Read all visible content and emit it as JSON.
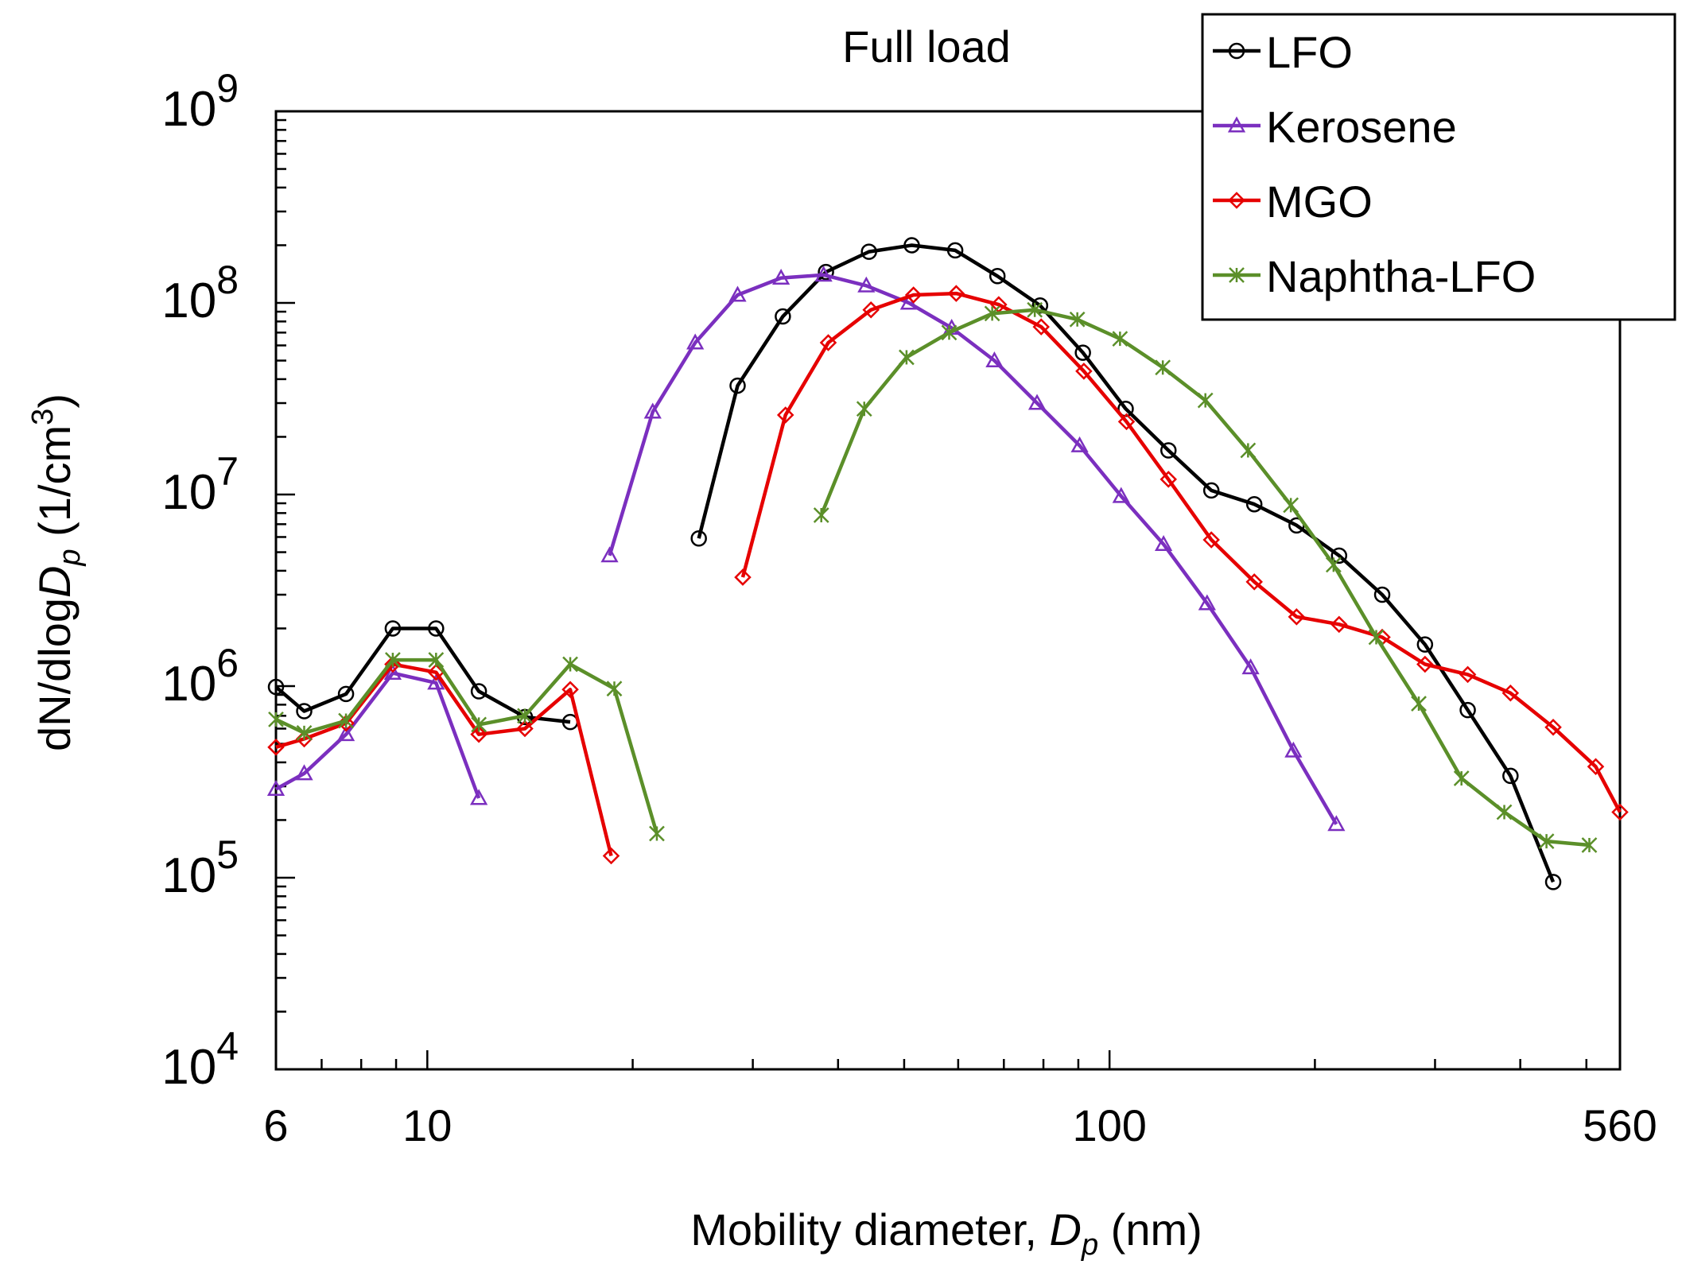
{
  "chart_data": {
    "type": "line",
    "title": "Full load",
    "xlabel": {
      "prefix": "Mobility diameter, ",
      "var": "D",
      "sub": "p",
      "suffix": " (nm)"
    },
    "ylabel": {
      "prefix": "dN/dlog",
      "var": "D",
      "sub": "p",
      "suffix_open": " (1/cm",
      "sup": "3",
      "suffix_close": ")"
    },
    "x_scale": "log",
    "y_scale": "log",
    "xlim": [
      6,
      560
    ],
    "ylim": [
      10000,
      1000000000
    ],
    "x_tick_labels": [
      {
        "value": 6,
        "text": "6"
      },
      {
        "value": 10,
        "text": "10"
      },
      {
        "value": 100,
        "text": "100"
      },
      {
        "value": 560,
        "text": "560"
      }
    ],
    "y_tick_labels": [
      {
        "value": 10000,
        "base": "10",
        "exp": "4"
      },
      {
        "value": 100000,
        "base": "10",
        "exp": "5"
      },
      {
        "value": 1000000,
        "base": "10",
        "exp": "6"
      },
      {
        "value": 10000000,
        "base": "10",
        "exp": "7"
      },
      {
        "value": 100000000,
        "base": "10",
        "exp": "8"
      },
      {
        "value": 1000000000,
        "base": "10",
        "exp": "9"
      }
    ],
    "legend_position": "top-right",
    "series": [
      {
        "name": "LFO",
        "color": "#000000",
        "marker": "circle",
        "segments": [
          [
            [
              6.0,
              990000
            ],
            [
              6.6,
              740000
            ],
            [
              7.6,
              910000
            ],
            [
              8.9,
              2000000
            ],
            [
              10.3,
              2000000
            ],
            [
              11.9,
              940000
            ],
            [
              13.9,
              690000
            ],
            [
              16.2,
              650000
            ]
          ],
          [
            [
              25.0,
              5900000
            ],
            [
              28.5,
              37000000
            ],
            [
              33.2,
              85000000
            ],
            [
              38.4,
              145000000
            ],
            [
              44.4,
              185000000
            ],
            [
              51.3,
              200000000
            ],
            [
              59.4,
              188000000
            ],
            [
              68.5,
              138000000
            ],
            [
              79.1,
              97000000
            ],
            [
              91.4,
              55000000
            ],
            [
              105.6,
              28000000
            ],
            [
              122.0,
              17000000
            ],
            [
              141.0,
              10500000
            ],
            [
              163.0,
              8900000
            ],
            [
              188.0,
              6900000
            ],
            [
              217.0,
              4800000
            ],
            [
              251.0,
              3000000
            ],
            [
              290.0,
              1650000
            ],
            [
              335.0,
              750000
            ],
            [
              387.0,
              340000
            ],
            [
              447.0,
              95000
            ]
          ]
        ]
      },
      {
        "name": "Kerosene",
        "color": "#7b2fbf",
        "marker": "triangle",
        "segments": [
          [
            [
              6.0,
              290000
            ],
            [
              6.6,
              350000
            ],
            [
              7.6,
              560000
            ],
            [
              8.9,
              1170000
            ],
            [
              10.3,
              1040000
            ],
            [
              11.9,
              260000
            ]
          ],
          [
            [
              18.5,
              4800000
            ],
            [
              21.4,
              27000000
            ],
            [
              24.7,
              62000000
            ],
            [
              28.5,
              110000000
            ],
            [
              33.0,
              135000000
            ],
            [
              38.1,
              140000000
            ],
            [
              44.0,
              123000000
            ],
            [
              50.8,
              100000000
            ],
            [
              58.7,
              74000000
            ],
            [
              67.8,
              50000000
            ],
            [
              78.3,
              30000000
            ],
            [
              90.4,
              18000000
            ],
            [
              104.0,
              9800000
            ],
            [
              120.0,
              5500000
            ],
            [
              139.0,
              2700000
            ],
            [
              161.0,
              1250000
            ],
            [
              186.0,
              460000
            ],
            [
              215.0,
              190000
            ]
          ]
        ]
      },
      {
        "name": "MGO",
        "color": "#e60000",
        "marker": "diamond",
        "segments": [
          [
            [
              6.0,
              480000
            ],
            [
              6.6,
              530000
            ],
            [
              7.6,
              640000
            ],
            [
              8.9,
              1300000
            ],
            [
              10.3,
              1180000
            ],
            [
              11.9,
              560000
            ],
            [
              13.9,
              600000
            ],
            [
              16.2,
              960000
            ],
            [
              18.6,
              130000
            ]
          ],
          [
            [
              29.0,
              3700000
            ],
            [
              33.5,
              26000000
            ],
            [
              38.7,
              62000000
            ],
            [
              44.7,
              92000000
            ],
            [
              51.6,
              110000000
            ],
            [
              59.6,
              112000000
            ],
            [
              68.8,
              98000000
            ],
            [
              79.4,
              75000000
            ],
            [
              91.7,
              44000000
            ],
            [
              105.9,
              24000000
            ],
            [
              122.0,
              12000000
            ],
            [
              141.0,
              5800000
            ],
            [
              163.0,
              3500000
            ],
            [
              188.0,
              2300000
            ],
            [
              217.0,
              2100000
            ],
            [
              251.0,
              1800000
            ],
            [
              290.0,
              1300000
            ],
            [
              335.0,
              1150000
            ],
            [
              387.0,
              920000
            ],
            [
              447.0,
              610000
            ],
            [
              516.0,
              380000
            ],
            [
              560.0,
              220000
            ]
          ]
        ]
      },
      {
        "name": "Naphtha-LFO",
        "color": "#5b8f29",
        "marker": "star",
        "segments": [
          [
            [
              6.0,
              670000
            ],
            [
              6.6,
              570000
            ],
            [
              7.6,
              660000
            ],
            [
              8.9,
              1370000
            ],
            [
              10.3,
              1370000
            ],
            [
              11.9,
              630000
            ],
            [
              13.9,
              700000
            ],
            [
              16.2,
              1300000
            ],
            [
              18.8,
              970000
            ],
            [
              21.7,
              170000
            ]
          ],
          [
            [
              37.8,
              7800000
            ],
            [
              43.7,
              28000000
            ],
            [
              50.4,
              52000000
            ],
            [
              58.2,
              70000000
            ],
            [
              67.3,
              88000000
            ],
            [
              77.7,
              92000000
            ],
            [
              89.7,
              82000000
            ],
            [
              103.6,
              65000000
            ],
            [
              119.7,
              46000000
            ],
            [
              138.2,
              31000000
            ],
            [
              159.6,
              17000000
            ],
            [
              184.4,
              8800000
            ],
            [
              213.0,
              4300000
            ],
            [
              246.0,
              1800000
            ],
            [
              284.0,
              810000
            ],
            [
              328.0,
              330000
            ],
            [
              379.0,
              220000
            ],
            [
              437.0,
              155000
            ],
            [
              505.0,
              148000
            ]
          ]
        ]
      }
    ]
  }
}
